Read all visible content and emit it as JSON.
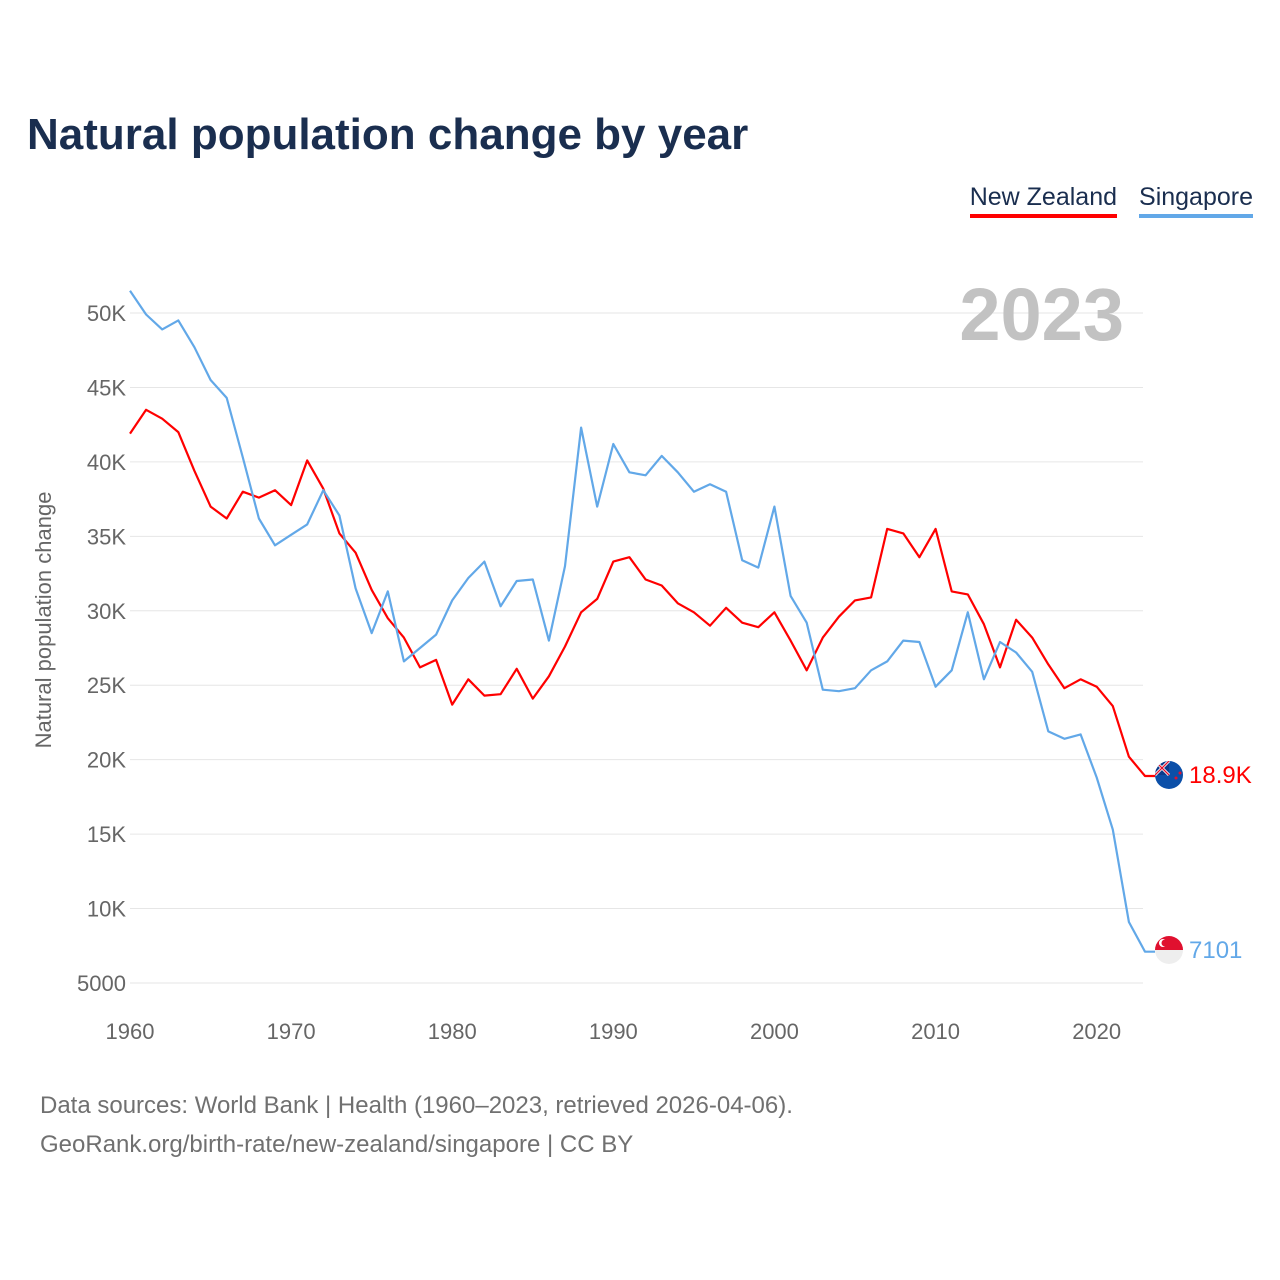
{
  "title": "Natural population change by year",
  "legend": [
    {
      "name": "New Zealand",
      "color": "#ff0000"
    },
    {
      "name": "Singapore",
      "color": "#62a8e8"
    }
  ],
  "current_year": "2023",
  "end_labels": {
    "new_zealand": "18.9K",
    "singapore": "7101"
  },
  "footer": {
    "line1": "Data sources: World Bank | Health (1960–2023, retrieved 2026-04-06).",
    "line2": "GeoRank.org/birth-rate/new-zealand/singapore | CC BY"
  },
  "chart_data": {
    "type": "line",
    "title": "Natural population change by year",
    "xlabel": "",
    "ylabel": "Natural population change",
    "xlim": [
      1960,
      2023
    ],
    "ylim": [
      5000,
      50000
    ],
    "x_ticks": [
      1960,
      1970,
      1980,
      1990,
      2000,
      2010,
      2020
    ],
    "x_tick_labels": [
      "1960",
      "1970",
      "1980",
      "1990",
      "2000",
      "2010",
      "2020"
    ],
    "y_ticks": [
      5000,
      10000,
      15000,
      20000,
      25000,
      30000,
      35000,
      40000,
      45000,
      50000
    ],
    "y_tick_labels": [
      "5000",
      "10K",
      "15K",
      "20K",
      "25K",
      "30K",
      "35K",
      "40K",
      "45K",
      "50K"
    ],
    "grid": true,
    "legend_position": "top-right",
    "x": [
      1960,
      1961,
      1962,
      1963,
      1964,
      1965,
      1966,
      1967,
      1968,
      1969,
      1970,
      1971,
      1972,
      1973,
      1974,
      1975,
      1976,
      1977,
      1978,
      1979,
      1980,
      1981,
      1982,
      1983,
      1984,
      1985,
      1986,
      1987,
      1988,
      1989,
      1990,
      1991,
      1992,
      1993,
      1994,
      1995,
      1996,
      1997,
      1998,
      1999,
      2000,
      2001,
      2002,
      2003,
      2004,
      2005,
      2006,
      2007,
      2008,
      2009,
      2010,
      2011,
      2012,
      2013,
      2014,
      2015,
      2016,
      2017,
      2018,
      2019,
      2020,
      2021,
      2022,
      2023
    ],
    "series": [
      {
        "name": "New Zealand",
        "color": "#ff0000",
        "values": [
          41900,
          43500,
          42900,
          42000,
          39400,
          37000,
          36200,
          38000,
          37600,
          38100,
          37100,
          40100,
          38200,
          35200,
          33900,
          31400,
          29500,
          28200,
          26200,
          26700,
          23700,
          25400,
          24300,
          24400,
          26100,
          24100,
          25600,
          27600,
          29900,
          30800,
          33300,
          33600,
          32100,
          31700,
          30500,
          29900,
          29000,
          30200,
          29200,
          28900,
          29900,
          28000,
          26000,
          28200,
          29600,
          30700,
          30900,
          35500,
          35200,
          33600,
          35500,
          31300,
          31100,
          29100,
          26200,
          29400,
          28200,
          26400,
          24800,
          25400,
          24900,
          23600,
          20200,
          18900
        ]
      },
      {
        "name": "Singapore",
        "color": "#62a8e8",
        "values": [
          51500,
          49900,
          48900,
          49500,
          47700,
          45500,
          44300,
          40300,
          36200,
          34400,
          35100,
          35800,
          38100,
          36400,
          31500,
          28500,
          31300,
          26600,
          27500,
          28400,
          30700,
          32200,
          33300,
          30300,
          32000,
          32100,
          28000,
          33000,
          42300,
          37000,
          41200,
          39300,
          39100,
          40400,
          39300,
          38000,
          38500,
          38000,
          33400,
          32900,
          37000,
          31000,
          29200,
          24700,
          24600,
          24800,
          26000,
          26600,
          28000,
          27900,
          24900,
          26000,
          29900,
          25400,
          27900,
          27200,
          25900,
          21900,
          21400,
          21700,
          18800,
          15300,
          9100,
          7101
        ]
      }
    ]
  }
}
